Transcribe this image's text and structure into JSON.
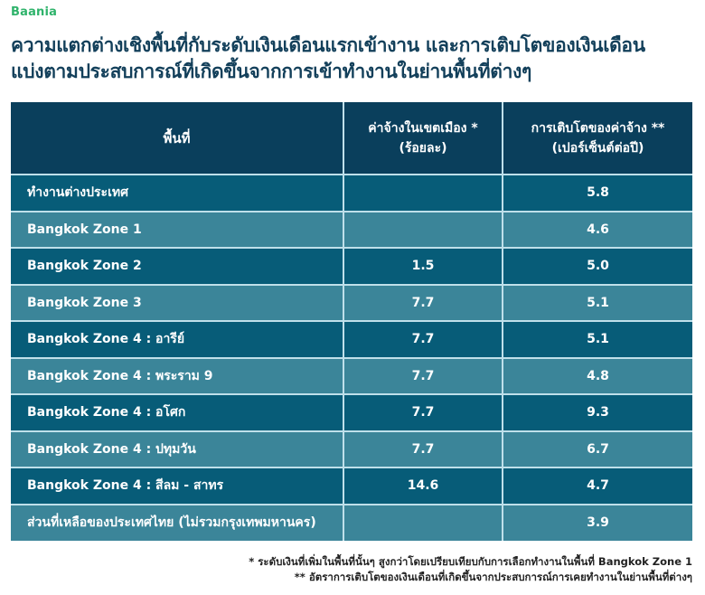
{
  "brand": {
    "logo_text": "Baania",
    "accent_color": "#2fb36b"
  },
  "title": {
    "line1": "ความแตกต่างเชิงพื้นที่กับระดับเงินเดือนแรกเข้างาน และการเติบโตของเงินเดือน",
    "line2": "แบ่งตามประสบการณ์ที่เกิดขึ้นจากการเข้าทำงานในย่านพื้นที่ต่างๆ"
  },
  "colors": {
    "header_bg": "#0a3f5c",
    "row_dark": "#075c78",
    "row_light": "#3b8599",
    "grid": "#bfe0ea",
    "title": "#123f5a"
  },
  "table": {
    "headers": {
      "region": "พื้นที่",
      "urban_wage_line1": "ค่าจ้างในเขตเมือง *",
      "urban_wage_line2": "(ร้อยละ)",
      "wage_growth_line1": "การเติบโตของค่าจ้าง **",
      "wage_growth_line2": "(เปอร์เซ็นต์ต่อปี)"
    },
    "rows": [
      {
        "region": "ทำงานต่างประเทศ",
        "urban_wage": "",
        "wage_growth": "5.8"
      },
      {
        "region": "Bangkok Zone 1",
        "urban_wage": "",
        "wage_growth": "4.6"
      },
      {
        "region": "Bangkok Zone 2",
        "urban_wage": "1.5",
        "wage_growth": "5.0"
      },
      {
        "region": "Bangkok Zone 3",
        "urban_wage": "7.7",
        "wage_growth": "5.1"
      },
      {
        "region": "Bangkok Zone 4 : อารีย์",
        "urban_wage": "7.7",
        "wage_growth": "5.1"
      },
      {
        "region": "Bangkok Zone 4 : พระราม 9",
        "urban_wage": "7.7",
        "wage_growth": "4.8"
      },
      {
        "region": "Bangkok Zone 4 : อโศก",
        "urban_wage": "7.7",
        "wage_growth": "9.3"
      },
      {
        "region": "Bangkok Zone 4 : ปทุมวัน",
        "urban_wage": "7.7",
        "wage_growth": "6.7"
      },
      {
        "region": "Bangkok Zone 4 : สีลม - สาทร",
        "urban_wage": "14.6",
        "wage_growth": "4.7"
      },
      {
        "region": "ส่วนที่เหลือของประเทศไทย (ไม่รวมกรุงเทพมหานคร)",
        "urban_wage": "",
        "wage_growth": "3.9"
      }
    ]
  },
  "footnotes": {
    "note1": "* ระดับเงินที่เพิ่มในพื้นที่นั้นๆ สูงกว่าโดยเปรียบเทียบกับการเลือกทำงานในพื้นที่ Bangkok Zone 1",
    "note2": "** อัตราการเติบโตของเงินเดือนที่เกิดขึ้นจากประสบการณ์การเคยทำงานในย่านพื้นที่ต่างๆ"
  },
  "chart_data": {
    "type": "table",
    "title": "ความแตกต่างเชิงพื้นที่กับระดับเงินเดือนแรกเข้างาน และการเติบโตของเงินเดือน แบ่งตามประสบการณ์ที่เกิดขึ้นจากการเข้าทำงานในย่านพื้นที่ต่างๆ",
    "columns": [
      "พื้นที่",
      "ค่าจ้างในเขตเมือง * (ร้อยละ)",
      "การเติบโตของค่าจ้าง ** (เปอร์เซ็นต์ต่อปี)"
    ],
    "categories": [
      "ทำงานต่างประเทศ",
      "Bangkok Zone 1",
      "Bangkok Zone 2",
      "Bangkok Zone 3",
      "Bangkok Zone 4 : อารีย์",
      "Bangkok Zone 4 : พระราม 9",
      "Bangkok Zone 4 : อโศก",
      "Bangkok Zone 4 : ปทุมวัน",
      "Bangkok Zone 4 : สีลม - สาทร",
      "ส่วนที่เหลือของประเทศไทย (ไม่รวมกรุงเทพมหานคร)"
    ],
    "series": [
      {
        "name": "ค่าจ้างในเขตเมือง * (ร้อยละ)",
        "values": [
          null,
          null,
          1.5,
          7.7,
          7.7,
          7.7,
          7.7,
          7.7,
          14.6,
          null
        ]
      },
      {
        "name": "การเติบโตของค่าจ้าง ** (เปอร์เซ็นต์ต่อปี)",
        "values": [
          5.8,
          4.6,
          5.0,
          5.1,
          5.1,
          4.8,
          9.3,
          6.7,
          4.7,
          3.9
        ]
      }
    ],
    "notes": [
      "* ระดับเงินที่เพิ่มในพื้นที่นั้นๆ สูงกว่าโดยเปรียบเทียบกับการเลือกทำงานในพื้นที่ Bangkok Zone 1",
      "** อัตราการเติบโตของเงินเดือนที่เกิดขึ้นจากประสบการณ์การเคยทำงานในย่านพื้นที่ต่างๆ"
    ]
  }
}
